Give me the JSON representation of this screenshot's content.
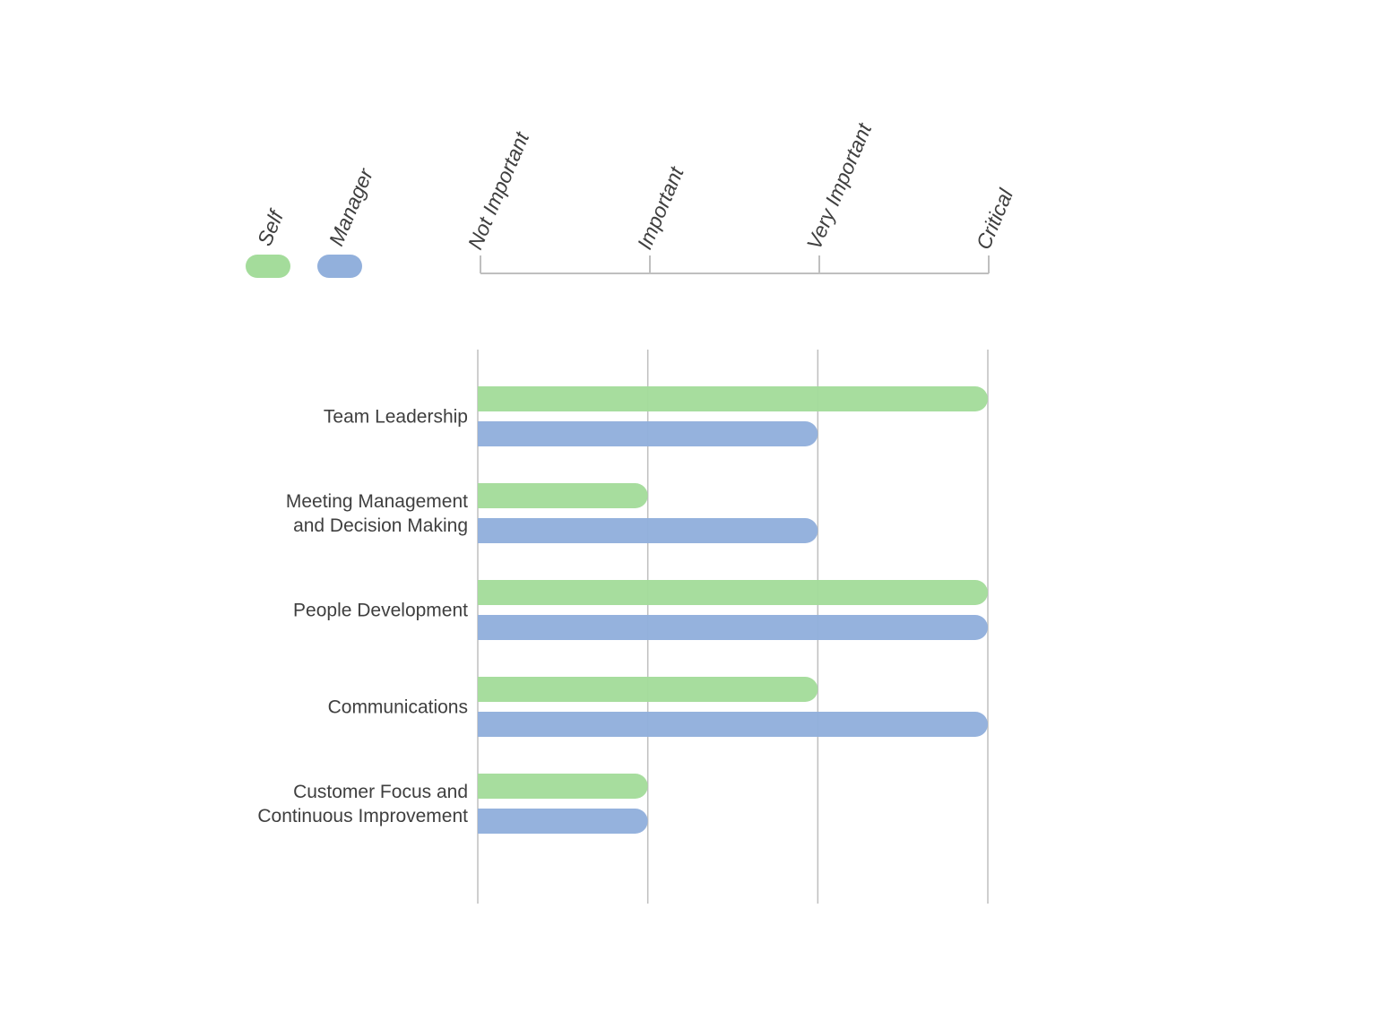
{
  "chart_data": {
    "type": "bar",
    "orientation": "horizontal",
    "title": "",
    "xlabel": "",
    "ylabel": "",
    "x_ticks": [
      "Not Important",
      "Important",
      "Very Important",
      "Critical"
    ],
    "xlim": [
      0,
      3
    ],
    "categories": [
      [
        "Team Leadership"
      ],
      [
        "Meeting Management",
        "and Decision Making"
      ],
      [
        "People Development"
      ],
      [
        "Communications"
      ],
      [
        "Customer Focus and",
        "Continuous Improvement"
      ]
    ],
    "series": [
      {
        "name": "Self",
        "color": "#a4dc9b",
        "values": [
          3,
          1,
          3,
          2,
          1
        ]
      },
      {
        "name": "Manager",
        "color": "#92b0dc",
        "values": [
          2,
          2,
          3,
          3,
          1
        ]
      }
    ],
    "legend_position": "top-left",
    "grid": true,
    "gridline_color": "#bfbfbf"
  }
}
